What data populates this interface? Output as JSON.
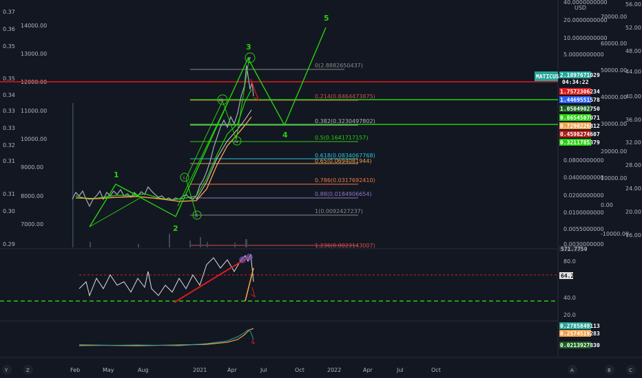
{
  "symbol": "MATICUSD",
  "currency": "USD",
  "countdown": "04:34:22",
  "colors": {
    "background": "#131722",
    "green": "#27d10c",
    "red": "#e01b1b",
    "fib_upper": "#8a8a8a",
    "orange": "#f0a04b"
  },
  "left_axis": [
    "0.36",
    "0.35",
    "0.35",
    "0.34",
    "0.33",
    "0.33",
    "0.32",
    "0.31",
    "0.31",
    "0.30",
    "0.29"
  ],
  "left_axis_top": "0.37",
  "price_axis": [
    "14000.00",
    "13000.00",
    "12000.00",
    "11000.00",
    "10000.00",
    "9000.00",
    "8000.00",
    "7000.00"
  ],
  "log_axis": [
    "40.0000000000",
    "20.0000000000",
    "10.0000000000",
    "5.0000000000",
    "0.0800000000",
    "0.0400000000",
    "0.0200000000",
    "0.0100000000",
    "0.0055000000",
    "0.0030000000"
  ],
  "mid_axis": [
    "70000.00",
    "60000.00",
    "50000.00",
    "40000.00",
    "30000.00",
    "20000.00",
    "10000.00",
    "0.00",
    "-10000.00"
  ],
  "far_axis": [
    "56.00",
    "52.00",
    "48.00",
    "44.00",
    "40.00",
    "36.00",
    "32.00",
    "28.00",
    "24.00",
    "20.00",
    "16.00"
  ],
  "price_tags": [
    {
      "label": "2.1897671029",
      "color": "#26a69a"
    },
    {
      "label": "1.7572306234",
      "color": "#e01b1b"
    },
    {
      "label": "1.4469551578",
      "color": "#2962ff"
    },
    {
      "label": "1.0504902750",
      "color": "#1b5e20"
    },
    {
      "label": "0.8654507071",
      "color": "#27d10c"
    },
    {
      "label": "0.7290226812",
      "color": "#f0a04b"
    },
    {
      "label": "0.4598274607",
      "color": "#b71c1c"
    },
    {
      "label": "0.3211785379",
      "color": "#27d10c"
    }
  ],
  "fib_levels": [
    {
      "label": "0(2.8882650437)",
      "color": "#8a8a8a"
    },
    {
      "label": "0.214(0.8464473875)",
      "color": "#d64d4d"
    },
    {
      "label": "0.382(0.3230497802)",
      "color": "#b2b5be"
    },
    {
      "label": "0.5(0.1641717157)",
      "color": "#27d10c"
    },
    {
      "label": "0.618(0.0834067768)",
      "color": "#26c6da"
    },
    {
      "label": "0.65(0.0694081944)",
      "color": "#f0a04b"
    },
    {
      "label": "0.786(0.0317692410)",
      "color": "#f07b3f"
    },
    {
      "label": "0.88(0.0184906654)",
      "color": "#8e7cc3"
    },
    {
      "label": "1(0.0092427237)",
      "color": "#8a8a8a"
    },
    {
      "label": "1.236(0.0023143007)",
      "color": "#d64d4d"
    }
  ],
  "wave_labels": {
    "w1": "1",
    "w2": "2",
    "w3": "3",
    "w4": "4",
    "w5": "5",
    "i": "i",
    "ii": "ii",
    "iii": "iii",
    "iv": "iv",
    "v": "v"
  },
  "volume_tag": "571.7750",
  "rsi_axis": [
    "80.0",
    "60.0",
    "40.0",
    "20.0"
  ],
  "rsi_tag": "64.2",
  "macd_tags": [
    {
      "label": "0.2785849113",
      "color": "#26a69a"
    },
    {
      "label": "0.2574519283",
      "color": "#f0a04b"
    },
    {
      "label": "0.0213927830",
      "color": "#1b5e20"
    }
  ],
  "time_axis": [
    "Feb",
    "May",
    "Aug",
    "2021",
    "Apr",
    "Jul",
    "Oct",
    "2022",
    "Apr",
    "Jul",
    "Oct"
  ],
  "corner_letters": {
    "y": "Y",
    "z": "Z",
    "a": "A",
    "b": "B",
    "c": "C"
  }
}
